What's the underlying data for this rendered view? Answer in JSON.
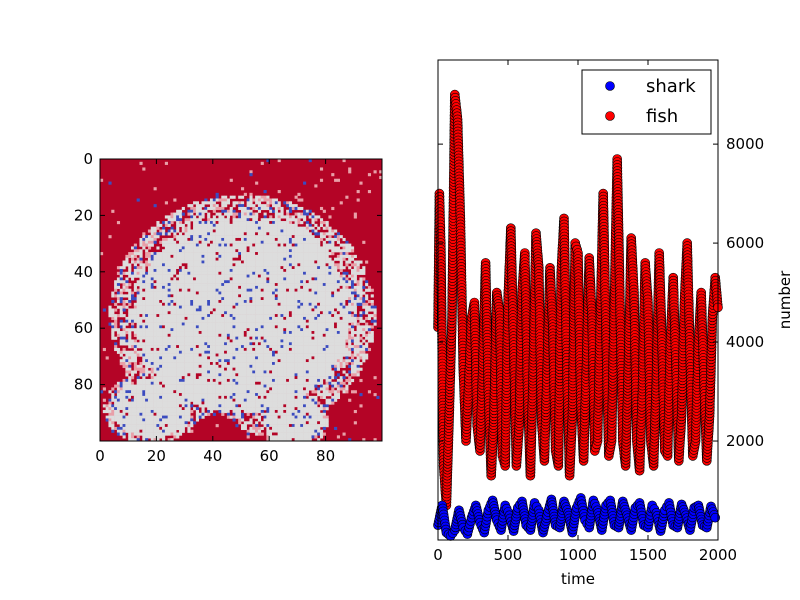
{
  "chart_data": [
    {
      "type": "heatmap",
      "title": "",
      "grid_size": [
        100,
        100
      ],
      "x_ticks": [
        0,
        20,
        40,
        60,
        80
      ],
      "y_ticks": [
        0,
        20,
        40,
        60,
        80
      ],
      "x_range": [
        0,
        100
      ],
      "y_range": [
        0,
        100
      ],
      "y_inverted": true,
      "categories": [
        "empty",
        "fish",
        "shark"
      ],
      "colors": {
        "fish": "#b40426",
        "empty": "#dddddd",
        "shark": "#3b4cc0",
        "fish_speckle": "#e8a0a8"
      },
      "description_note": ""
    },
    {
      "type": "scatter",
      "title": "",
      "xlabel": "time",
      "ylabel": "number",
      "y_axis_side": "right",
      "xlim": [
        0,
        2000
      ],
      "ylim": [
        0,
        9700
      ],
      "x_ticks": [
        0,
        500,
        1000,
        1500,
        2000
      ],
      "y_ticks": [
        2000,
        4000,
        6000,
        8000
      ],
      "legend_position": "top-right",
      "series": [
        {
          "name": "shark",
          "color": "#0000ff",
          "x": [
            0,
            30,
            60,
            90,
            120,
            150,
            180,
            210,
            240,
            270,
            300,
            330,
            360,
            390,
            420,
            450,
            480,
            510,
            540,
            570,
            600,
            630,
            660,
            690,
            720,
            750,
            780,
            810,
            840,
            870,
            900,
            930,
            960,
            990,
            1020,
            1050,
            1080,
            1110,
            1140,
            1170,
            1200,
            1230,
            1260,
            1290,
            1320,
            1350,
            1380,
            1410,
            1440,
            1470,
            1500,
            1530,
            1560,
            1590,
            1620,
            1650,
            1680,
            1710,
            1740,
            1770,
            1800,
            1830,
            1860,
            1890,
            1920,
            1950,
            1980
          ],
          "y": [
            300,
            700,
            150,
            80,
            200,
            600,
            250,
            120,
            450,
            700,
            350,
            150,
            600,
            800,
            400,
            200,
            700,
            500,
            180,
            650,
            780,
            300,
            200,
            750,
            600,
            150,
            500,
            820,
            300,
            250,
            780,
            550,
            150,
            650,
            850,
            400,
            250,
            800,
            600,
            200,
            700,
            800,
            300,
            250,
            780,
            500,
            200,
            650,
            750,
            300,
            250,
            700,
            550,
            180,
            600,
            750,
            300,
            250,
            720,
            500,
            200,
            650,
            700,
            300,
            250,
            680,
            450
          ]
        },
        {
          "name": "fish",
          "color": "#ff0000",
          "x": [
            0,
            10,
            20,
            40,
            60,
            80,
            100,
            120,
            140,
            160,
            180,
            200,
            220,
            240,
            260,
            280,
            300,
            320,
            340,
            360,
            380,
            400,
            420,
            440,
            460,
            480,
            500,
            520,
            540,
            560,
            580,
            600,
            620,
            640,
            660,
            680,
            700,
            720,
            740,
            760,
            780,
            800,
            820,
            840,
            860,
            880,
            900,
            920,
            940,
            960,
            980,
            1000,
            1020,
            1040,
            1060,
            1080,
            1100,
            1120,
            1140,
            1160,
            1180,
            1200,
            1220,
            1240,
            1260,
            1280,
            1300,
            1320,
            1340,
            1360,
            1380,
            1400,
            1420,
            1440,
            1460,
            1480,
            1500,
            1520,
            1540,
            1560,
            1580,
            1600,
            1620,
            1640,
            1660,
            1680,
            1700,
            1720,
            1740,
            1760,
            1780,
            1800,
            1820,
            1840,
            1860,
            1880,
            1900,
            1920,
            1940,
            1960,
            1980,
            2000
          ],
          "y": [
            4300,
            7000,
            6000,
            1500,
            700,
            2500,
            4500,
            9000,
            8500,
            6500,
            3500,
            2000,
            3200,
            4500,
            4800,
            2300,
            1800,
            3500,
            5600,
            3000,
            1300,
            2500,
            5000,
            4600,
            1700,
            1500,
            4800,
            6300,
            4000,
            1500,
            2300,
            5000,
            5800,
            3000,
            1300,
            3400,
            6200,
            5500,
            2400,
            1600,
            3500,
            5500,
            4300,
            1800,
            1500,
            5400,
            6500,
            3500,
            1300,
            2500,
            6000,
            5800,
            2800,
            1600,
            3500,
            5700,
            4500,
            1800,
            2000,
            4500,
            7000,
            4200,
            1700,
            2000,
            4800,
            7700,
            4800,
            2000,
            1500,
            3500,
            6100,
            5000,
            2000,
            1400,
            3000,
            5600,
            4800,
            2000,
            1500,
            3200,
            5800,
            4000,
            1800,
            1700,
            4000,
            5300,
            3500,
            1600,
            2500,
            4800,
            6000,
            3800,
            1700,
            2000,
            4000,
            5000,
            3200,
            1600,
            2500,
            4500,
            5300,
            4700
          ]
        }
      ]
    }
  ]
}
